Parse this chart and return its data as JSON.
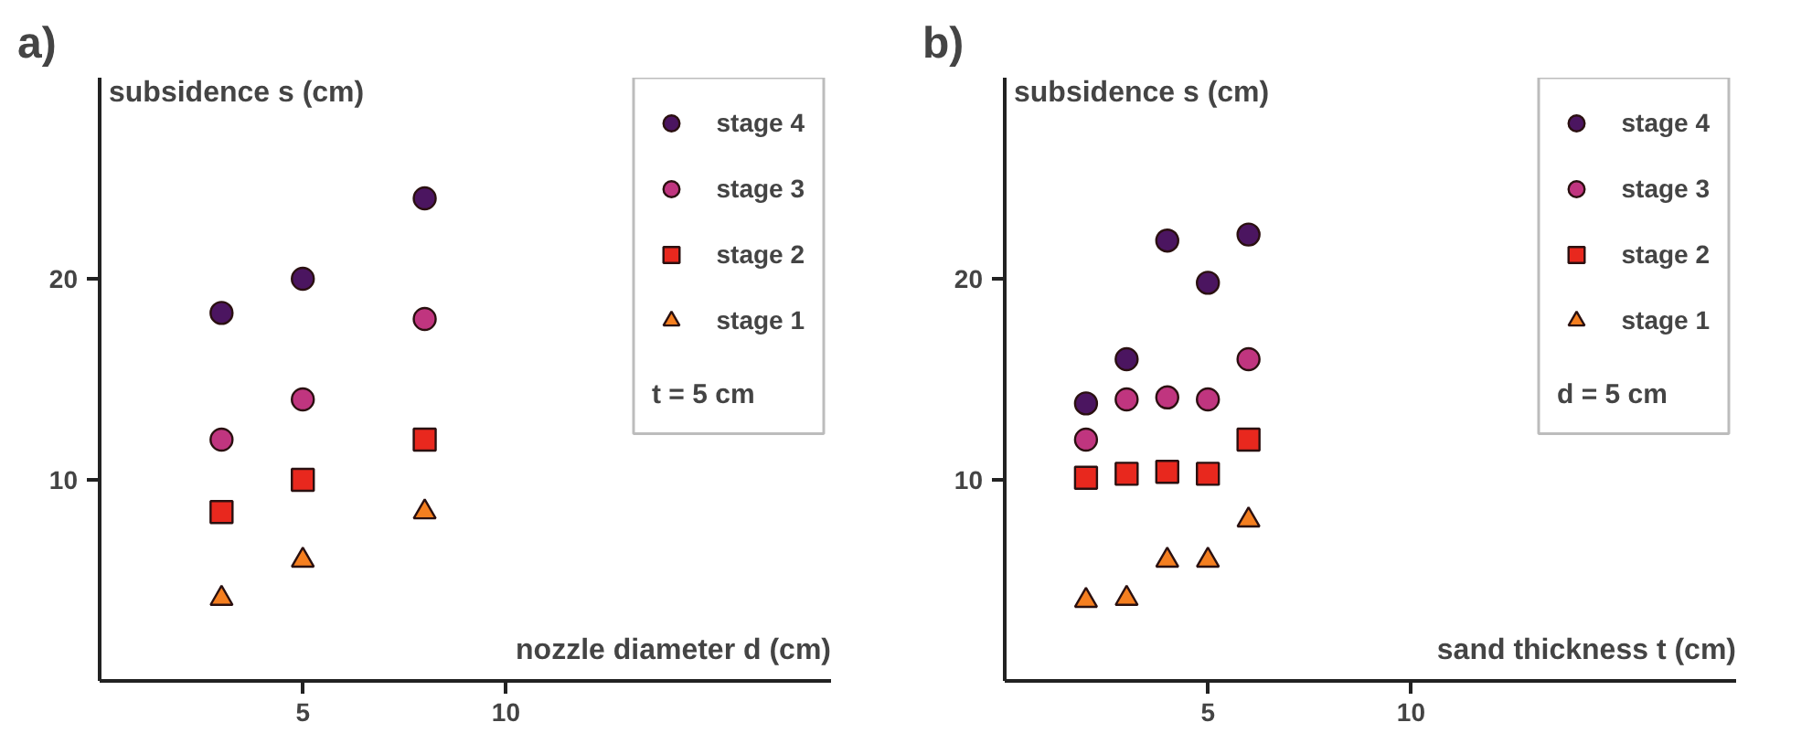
{
  "chart_data": [
    {
      "type": "scatter",
      "title": "a)",
      "xlabel": "nozzle diameter d (cm)",
      "ylabel": "subsidence s (cm)",
      "xlim": [
        0,
        18
      ],
      "ylim": [
        0,
        30
      ],
      "xticks": [
        5,
        10
      ],
      "yticks": [
        10,
        20
      ],
      "grid": false,
      "legend": "top right",
      "annotations": [
        "t = 5 cm"
      ],
      "series": [
        {
          "name": "stage 4",
          "color": "#4b1560",
          "marker": "circle",
          "x": [
            3,
            5,
            8
          ],
          "values": [
            18.3,
            20,
            24
          ]
        },
        {
          "name": "stage 3",
          "color": "#c0357f",
          "marker": "circle",
          "x": [
            3,
            5,
            8
          ],
          "values": [
            12,
            14,
            18
          ]
        },
        {
          "name": "stage 2",
          "color": "#e8281e",
          "marker": "square",
          "x": [
            3,
            5,
            8
          ],
          "values": [
            8.4,
            10,
            12
          ]
        },
        {
          "name": "stage 1",
          "color": "#f57f20",
          "marker": "triangle",
          "x": [
            3,
            5,
            8
          ],
          "values": [
            4.1,
            6,
            8.4
          ]
        }
      ]
    },
    {
      "type": "scatter",
      "title": "b)",
      "xlabel": "sand thickness t (cm)",
      "ylabel": "subsidence s (cm)",
      "xlim": [
        0,
        18
      ],
      "ylim": [
        0,
        30
      ],
      "xticks": [
        5,
        10
      ],
      "yticks": [
        10,
        20
      ],
      "grid": false,
      "legend": "top right",
      "annotations": [
        "d = 5 cm"
      ],
      "series": [
        {
          "name": "stage 4",
          "color": "#4b1560",
          "marker": "circle",
          "x": [
            2,
            3,
            4,
            5,
            6
          ],
          "values": [
            13.8,
            16,
            21.9,
            19.8,
            22.2
          ]
        },
        {
          "name": "stage 3",
          "color": "#c0357f",
          "marker": "circle",
          "x": [
            2,
            3,
            4,
            5,
            6
          ],
          "values": [
            12,
            14,
            14.1,
            14,
            16
          ]
        },
        {
          "name": "stage 2",
          "color": "#e8281e",
          "marker": "square",
          "x": [
            2,
            3,
            4,
            5,
            6
          ],
          "values": [
            10.1,
            10.3,
            10.4,
            10.3,
            12
          ]
        },
        {
          "name": "stage 1",
          "color": "#f57f20",
          "marker": "triangle",
          "x": [
            2,
            3,
            4,
            5,
            6
          ],
          "values": [
            4,
            4.1,
            6,
            6,
            8
          ]
        }
      ]
    }
  ]
}
